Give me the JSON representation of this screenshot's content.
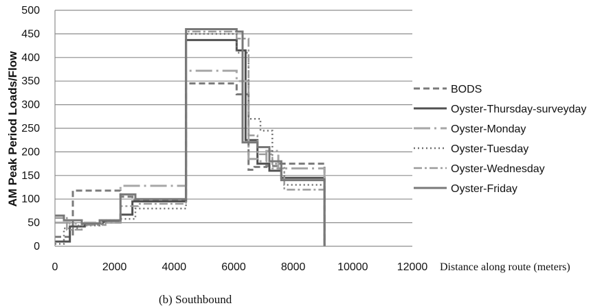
{
  "caption": "(b) Southbound",
  "chart_data": {
    "type": "line",
    "title": "",
    "xlabel": "Distance along route (meters)",
    "ylabel": "AM Peak Period Loads/Flow",
    "xlim": [
      0,
      12000
    ],
    "ylim": [
      0,
      500
    ],
    "x_ticks": [
      0,
      2000,
      4000,
      6000,
      8000,
      10000,
      12000
    ],
    "y_ticks": [
      0,
      50,
      100,
      150,
      200,
      250,
      300,
      350,
      400,
      450,
      500
    ],
    "grid": "horizontal",
    "legend_position": "right",
    "step": true,
    "series": [
      {
        "name": "BODS",
        "color": "#7a7a7a",
        "dash": "9,5",
        "width": 3,
        "x": [
          0,
          600,
          1100,
          2200,
          2600,
          4400,
          6100,
          6500,
          6700,
          7100,
          7500,
          9050,
          9050
        ],
        "y": [
          20,
          118,
          118,
          105,
          97,
          345,
          322,
          162,
          168,
          170,
          175,
          175,
          0
        ]
      },
      {
        "name": "Oyster-Thursday-surveyday",
        "color": "#505050",
        "dash": "",
        "width": 3,
        "x": [
          0,
          500,
          1000,
          1600,
          2200,
          2600,
          4400,
          6100,
          6400,
          6800,
          7200,
          7600,
          9050,
          9050
        ],
        "y": [
          10,
          42,
          48,
          52,
          67,
          95,
          437,
          415,
          225,
          175,
          160,
          145,
          145,
          0
        ]
      },
      {
        "name": "Oyster-Monday",
        "color": "#a6a6a6",
        "dash": "24,6,3,6",
        "width": 3,
        "x": [
          0,
          500,
          1000,
          2200,
          4400,
          6100,
          6500,
          6800,
          7100,
          7500,
          9050,
          9050
        ],
        "y": [
          50,
          48,
          50,
          128,
          372,
          350,
          185,
          180,
          202,
          165,
          155,
          0
        ]
      },
      {
        "name": "Oyster-Tuesday",
        "color": "#6e6e6e",
        "dash": "2,4",
        "width": 2.5,
        "x": [
          0,
          300,
          800,
          1500,
          2200,
          2700,
          4400,
          6100,
          6500,
          6900,
          7300,
          7700,
          9050,
          9050
        ],
        "y": [
          5,
          38,
          44,
          55,
          58,
          80,
          450,
          410,
          270,
          245,
          175,
          130,
          130,
          0
        ]
      },
      {
        "name": "Oyster-Wednesday",
        "color": "#9a9a9a",
        "dash": "12,4,3,4",
        "width": 2.5,
        "x": [
          0,
          400,
          900,
          1700,
          2200,
          2800,
          4400,
          6100,
          6500,
          6800,
          7300,
          7700,
          9050,
          9050
        ],
        "y": [
          60,
          35,
          45,
          50,
          85,
          90,
          455,
          440,
          235,
          195,
          165,
          120,
          120,
          0
        ]
      },
      {
        "name": "Oyster-Friday",
        "color": "#787878",
        "dash": "",
        "width": 3,
        "x": [
          0,
          300,
          900,
          1500,
          2200,
          2700,
          4400,
          6100,
          6300,
          6800,
          7200,
          7600,
          9050,
          9050
        ],
        "y": [
          65,
          55,
          48,
          55,
          110,
          100,
          460,
          455,
          220,
          210,
          180,
          140,
          140,
          0
        ]
      }
    ]
  }
}
